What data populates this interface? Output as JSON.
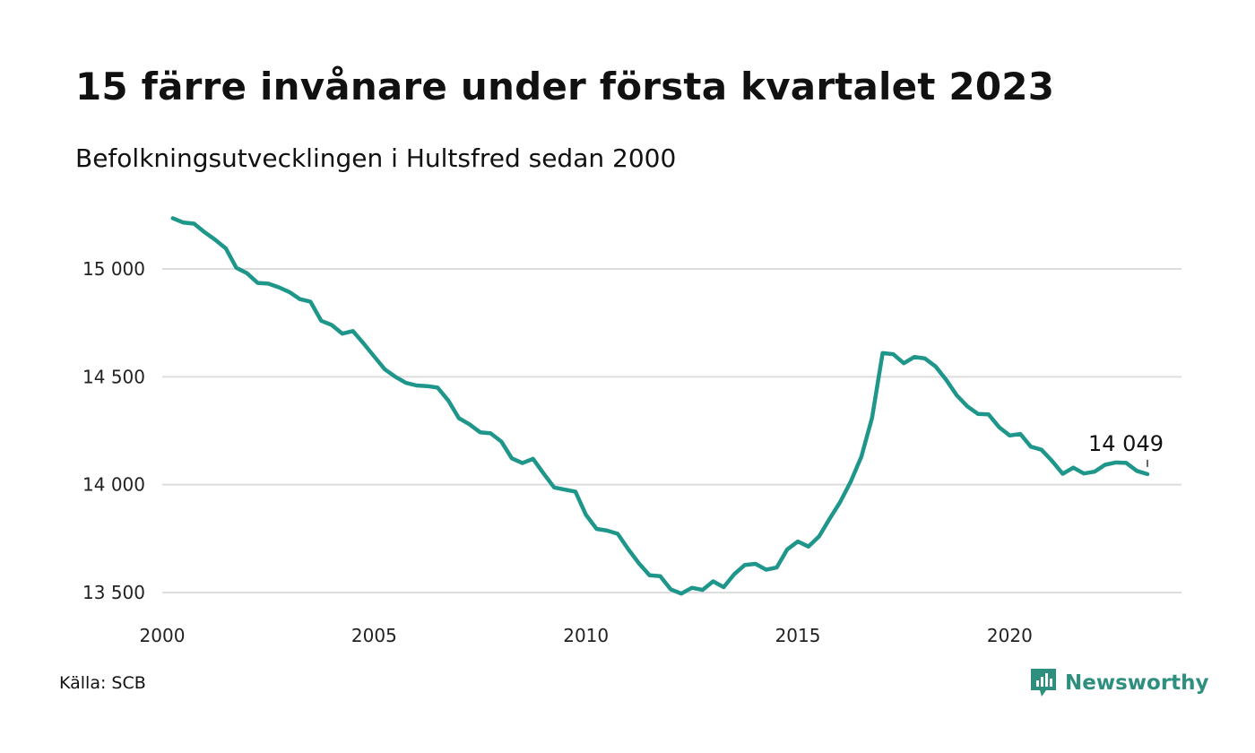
{
  "title": "15 färre invånare under första kvartalet 2023",
  "subtitle": "Befolkningsutvecklingen i Hultsfred sedan 2000",
  "source": "Källa: SCB",
  "brand": {
    "name": "Newsworthy",
    "icon": "newsworthy-logo-icon"
  },
  "colors": {
    "line": "#1f968a",
    "grid": "#dddddd",
    "brand": "#2f8f7f"
  },
  "chart_data": {
    "type": "line",
    "title": "15 färre invånare under första kvartalet 2023",
    "subtitle": "Befolkningsutvecklingen i Hultsfred sedan 2000",
    "xlabel": "",
    "ylabel": "",
    "xlim": [
      2000,
      2023.25
    ],
    "ylim": [
      13450,
      15300
    ],
    "grid": true,
    "y_ticks": [
      {
        "value": 13500,
        "label": "13 500"
      },
      {
        "value": 14000,
        "label": "14 000"
      },
      {
        "value": 14500,
        "label": "14 500"
      },
      {
        "value": 15000,
        "label": "15 000"
      }
    ],
    "x_ticks": [
      {
        "value": 2000,
        "label": "2000"
      },
      {
        "value": 2005,
        "label": "2005"
      },
      {
        "value": 2010,
        "label": "2010"
      },
      {
        "value": 2015,
        "label": "2015"
      },
      {
        "value": 2020,
        "label": "2020"
      }
    ],
    "last_label": "14 049",
    "x": [
      2000.25,
      2000.5,
      2000.75,
      2001,
      2001.25,
      2001.5,
      2001.75,
      2002,
      2002.25,
      2002.5,
      2002.75,
      2003,
      2003.25,
      2003.5,
      2003.75,
      2004,
      2004.25,
      2004.5,
      2004.75,
      2005,
      2005.25,
      2005.5,
      2005.75,
      2006,
      2006.25,
      2006.5,
      2006.75,
      2007,
      2007.25,
      2007.5,
      2007.75,
      2008,
      2008.25,
      2008.5,
      2008.75,
      2009,
      2009.25,
      2009.5,
      2009.75,
      2010,
      2010.25,
      2010.5,
      2010.75,
      2011,
      2011.25,
      2011.5,
      2011.75,
      2012,
      2012.25,
      2012.5,
      2012.75,
      2013,
      2013.25,
      2013.5,
      2013.75,
      2014,
      2014.25,
      2014.5,
      2014.75,
      2015,
      2015.25,
      2015.5,
      2015.75,
      2016,
      2016.25,
      2016.5,
      2016.75,
      2017,
      2017.25,
      2017.5,
      2017.75,
      2018,
      2018.25,
      2018.5,
      2018.75,
      2019,
      2019.25,
      2019.5,
      2019.75,
      2020,
      2020.25,
      2020.5,
      2020.75,
      2021,
      2021.25,
      2021.5,
      2021.75,
      2022,
      2022.25,
      2022.5,
      2022.75,
      2023,
      2023.25
    ],
    "series": [
      {
        "values": [
          15235,
          15215,
          15210,
          15170,
          15135,
          15095,
          15005,
          14980,
          14935,
          14932,
          14915,
          14893,
          14860,
          14848,
          14760,
          14740,
          14700,
          14712,
          14655,
          14595,
          14535,
          14500,
          14472,
          14460,
          14457,
          14450,
          14390,
          14308,
          14280,
          14243,
          14238,
          14200,
          14122,
          14100,
          14120,
          14052,
          13987,
          13977,
          13968,
          13860,
          13795,
          13787,
          13772,
          13700,
          13635,
          13580,
          13576,
          13515,
          13495,
          13522,
          13512,
          13552,
          13525,
          13585,
          13628,
          13633,
          13606,
          13616,
          13700,
          13737,
          13713,
          13760,
          13842,
          13920,
          14015,
          14130,
          14310,
          14610,
          14605,
          14563,
          14592,
          14585,
          14548,
          14486,
          14414,
          14363,
          14328,
          14326,
          14266,
          14228,
          14235,
          14176,
          14162,
          14110,
          14050,
          14079,
          14052,
          14060,
          14092,
          14103,
          14101,
          14064,
          14049
        ]
      }
    ]
  }
}
